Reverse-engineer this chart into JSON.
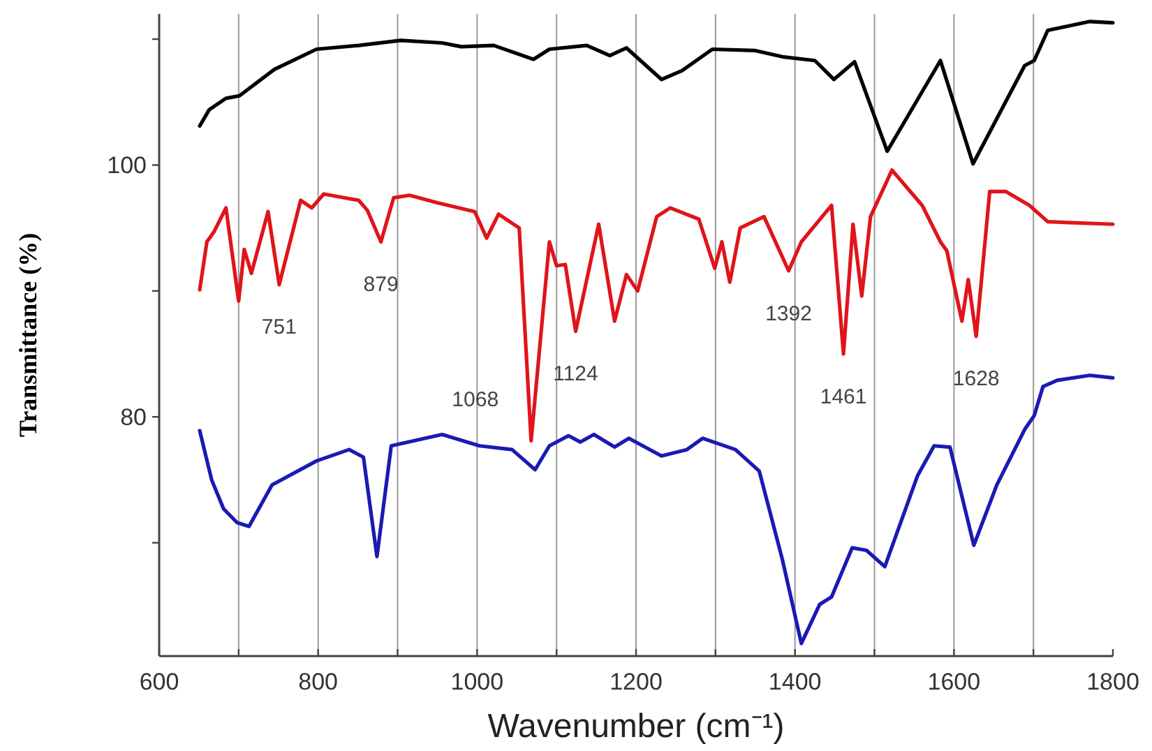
{
  "chart_data": {
    "type": "line",
    "xlabel": "Wavenumber (cm⁻¹)",
    "ylabel": "Transmittance (%)",
    "xlim": [
      600,
      1800
    ],
    "ylim": [
      61,
      112
    ],
    "xticks": [
      600,
      {
        "value": 700,
        "label": null
      },
      800,
      {
        "value": 900,
        "label": null
      },
      1000,
      {
        "value": 1100,
        "label": null
      },
      1200,
      {
        "value": 1300,
        "label": null
      },
      1400,
      {
        "value": 1500,
        "label": null
      },
      1600,
      {
        "value": 1700,
        "label": null
      },
      1800
    ],
    "yticks": [
      {
        "value": 70,
        "label": null
      },
      80,
      {
        "value": 90,
        "label": null
      },
      100,
      {
        "value": 110,
        "label": null
      }
    ],
    "grid": "x",
    "line_style": "solid",
    "marker": "none",
    "series": [
      {
        "color": "#000000",
        "x": [
          651,
          663,
          684,
          701,
          745,
          798,
          851,
          904,
          956,
          980,
          1021,
          1071,
          1091,
          1138,
          1167,
          1188,
          1232,
          1258,
          1296,
          1349,
          1384,
          1425,
          1449,
          1475,
          1516,
          1583,
          1624,
          1689,
          1701,
          1718,
          1771,
          1800
        ],
        "values": [
          103.1,
          104.4,
          105.3,
          105.5,
          107.6,
          109.2,
          109.5,
          109.9,
          109.7,
          109.4,
          109.5,
          108.4,
          109.2,
          109.5,
          108.7,
          109.3,
          106.8,
          107.5,
          109.2,
          109.1,
          108.6,
          108.3,
          106.8,
          108.2,
          101.1,
          108.3,
          100.1,
          107.9,
          108.3,
          110.7,
          111.4,
          111.3
        ]
      },
      {
        "color": "#e0141a",
        "x": [
          651,
          660,
          669,
          684,
          700,
          707,
          716,
          737,
          751,
          778,
          792,
          807,
          851,
          862,
          879,
          895,
          915,
          950,
          997,
          1012,
          1027,
          1053,
          1068,
          1091,
          1100,
          1111,
          1124,
          1153,
          1173,
          1188,
          1202,
          1226,
          1243,
          1279,
          1299,
          1308,
          1318,
          1331,
          1361,
          1392,
          1408,
          1446,
          1461,
          1473,
          1484,
          1495,
          1522,
          1560,
          1583,
          1591,
          1610,
          1618,
          1628,
          1645,
          1665,
          1695,
          1718,
          1800
        ],
        "values": [
          90.1,
          93.9,
          94.7,
          96.6,
          89.2,
          93.3,
          91.4,
          96.3,
          90.5,
          97.2,
          96.6,
          97.7,
          97.2,
          96.4,
          93.9,
          97.4,
          97.6,
          97,
          96.3,
          94.2,
          96.1,
          95,
          78.1,
          93.9,
          92,
          92.1,
          86.8,
          95.3,
          87.6,
          91.3,
          90,
          95.9,
          96.6,
          95.7,
          91.8,
          93.9,
          90.7,
          95,
          95.9,
          91.6,
          93.9,
          96.8,
          85,
          95.3,
          89.6,
          95.9,
          99.6,
          96.8,
          93.9,
          93.2,
          87.6,
          90.9,
          86.4,
          97.9,
          97.9,
          96.8,
          95.5,
          95.3
        ]
      },
      {
        "color": "#1a1ab4",
        "x": [
          651,
          666,
          681,
          698,
          713,
          742,
          798,
          839,
          857,
          874,
          892,
          956,
          1003,
          1044,
          1073,
          1091,
          1115,
          1130,
          1147,
          1173,
          1191,
          1232,
          1264,
          1284,
          1325,
          1355,
          1384,
          1408,
          1431,
          1446,
          1472,
          1490,
          1513,
          1554,
          1575,
          1595,
          1625,
          1654,
          1689,
          1701,
          1712,
          1730,
          1771,
          1800
        ],
        "values": [
          78.9,
          75,
          72.7,
          71.6,
          71.3,
          74.6,
          76.5,
          77.4,
          76.8,
          68.9,
          77.7,
          78.6,
          77.7,
          77.4,
          75.8,
          77.7,
          78.5,
          78,
          78.6,
          77.6,
          78.3,
          76.9,
          77.4,
          78.3,
          77.4,
          75.7,
          68.7,
          62,
          65.1,
          65.7,
          69.6,
          69.4,
          68.1,
          75.3,
          77.7,
          77.6,
          69.8,
          74.6,
          79,
          80.1,
          82.4,
          82.9,
          83.3,
          83.1
        ]
      }
    ],
    "annotations": [
      {
        "text": "751",
        "x": 751,
        "y": 90.5
      },
      {
        "text": "879",
        "x": 879,
        "y": 93.9
      },
      {
        "text": "1068",
        "x": 1068,
        "y": 78.1
      },
      {
        "text": "1124",
        "x": 1124,
        "y": 86.8
      },
      {
        "text": "1392",
        "x": 1392,
        "y": 91.6
      },
      {
        "text": "1461",
        "x": 1461,
        "y": 85
      },
      {
        "text": "1628",
        "x": 1628,
        "y": 86.4
      }
    ]
  }
}
